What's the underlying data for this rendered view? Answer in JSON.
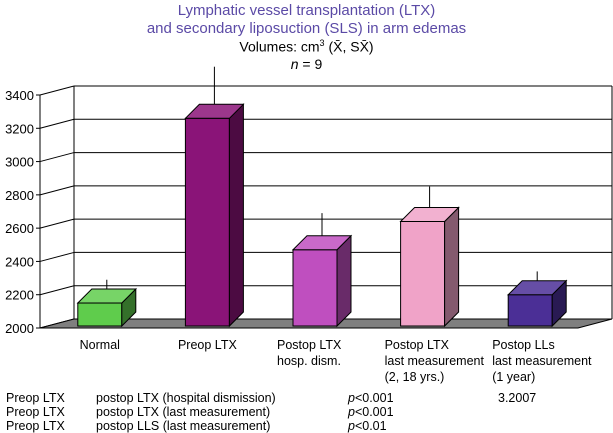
{
  "chart_data": {
    "type": "bar",
    "title_line1": "Lymphatic vessel transplantation (LTX)",
    "title_line2": "and secondary liposuction (SLS) in arm edemas",
    "subtitle_prefix": "Volumes: cm",
    "subtitle_sup": "3",
    "subtitle_stats": "(X̄, SX̄)",
    "n_label_var": "n",
    "n_label_rest": " = 9",
    "categories": [
      [
        "Normal"
      ],
      [
        "Preop LTX"
      ],
      [
        "Postop LTX",
        "hosp. dism."
      ],
      [
        "Postop LTX",
        "last measurement",
        "(2, 18 yrs.)"
      ],
      [
        "Postop LLs",
        "last measurement",
        "(1 year)"
      ]
    ],
    "values": [
      2150,
      3260,
      2470,
      2640,
      2200
    ],
    "errors": [
      140,
      310,
      220,
      210,
      140
    ],
    "colors": [
      "#5fcc4c",
      "#8a1478",
      "#bf4fbf",
      "#f0a3c8",
      "#4b2f96"
    ],
    "yticks": [
      "2000",
      "2200",
      "2400",
      "2600",
      "2800",
      "3000",
      "3200",
      "3400"
    ],
    "ylim": [
      2000,
      3400
    ],
    "xlabel": "",
    "ylabel": ""
  },
  "footnotes": [
    {
      "left": "Preop LTX",
      "comparison": "postop LTX (hospital dismission)",
      "p_var": "p",
      "p_rest": "<0.001",
      "note": "3.2007"
    },
    {
      "left": "Preop LTX",
      "comparison": "postop LTX (last measurement)",
      "p_var": "p",
      "p_rest": "<0.001",
      "note": ""
    },
    {
      "left": "Preop LTX",
      "comparison": "postop LLS (last measurement)",
      "p_var": "p",
      "p_rest": "<0.01",
      "note": ""
    }
  ]
}
